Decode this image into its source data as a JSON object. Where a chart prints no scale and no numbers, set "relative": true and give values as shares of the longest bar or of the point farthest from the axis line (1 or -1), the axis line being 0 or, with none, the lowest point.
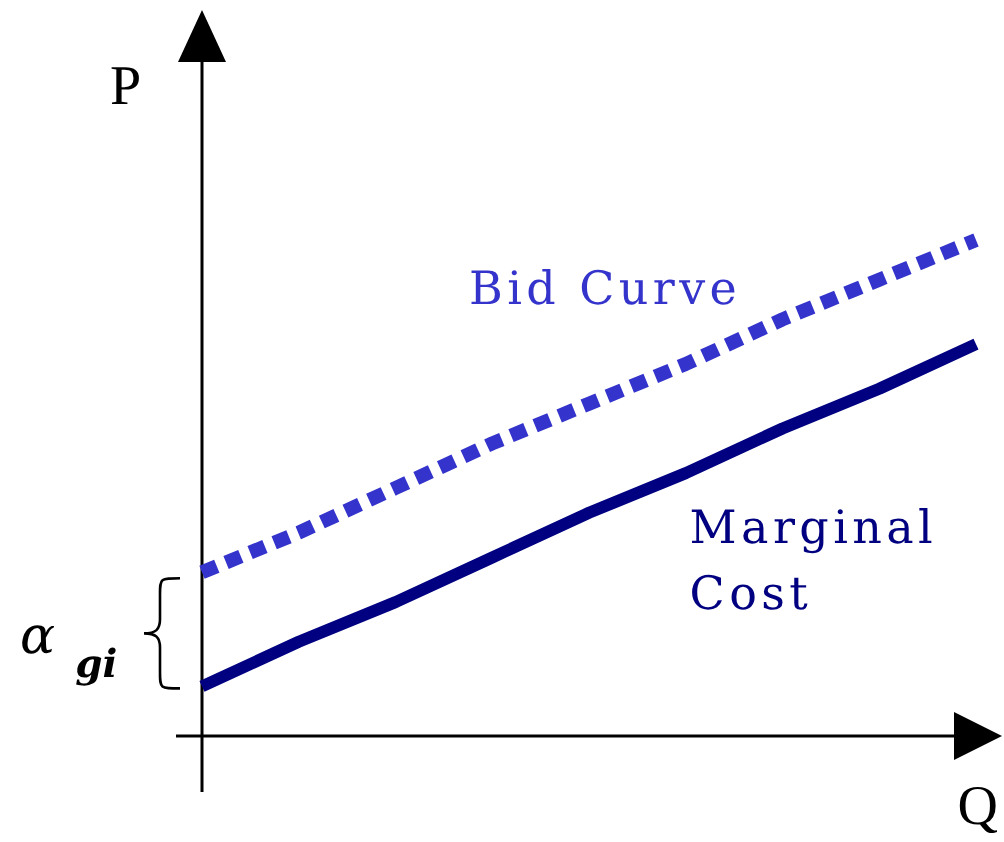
{
  "chart_data": {
    "type": "line",
    "relative": true,
    "xlabel": "Q",
    "ylabel": "P",
    "categories": [
      null,
      null,
      null,
      null,
      null,
      null,
      null,
      null,
      null
    ],
    "series": [
      {
        "name": "Bid Curve",
        "color": "#3434cc",
        "line_style": "dotted",
        "values": [
          0.33,
          0.41,
          0.5,
          0.59,
          0.67,
          0.75,
          0.84,
          0.92,
          1
        ]
      },
      {
        "name": "Marginal Cost",
        "color": "#000080",
        "line_style": "solid",
        "values": [
          0.1,
          0.19,
          0.27,
          0.36,
          0.45,
          0.53,
          0.62,
          0.7,
          0.79
        ]
      }
    ],
    "annotations": [
      "α$_{gi}$"
    ]
  }
}
